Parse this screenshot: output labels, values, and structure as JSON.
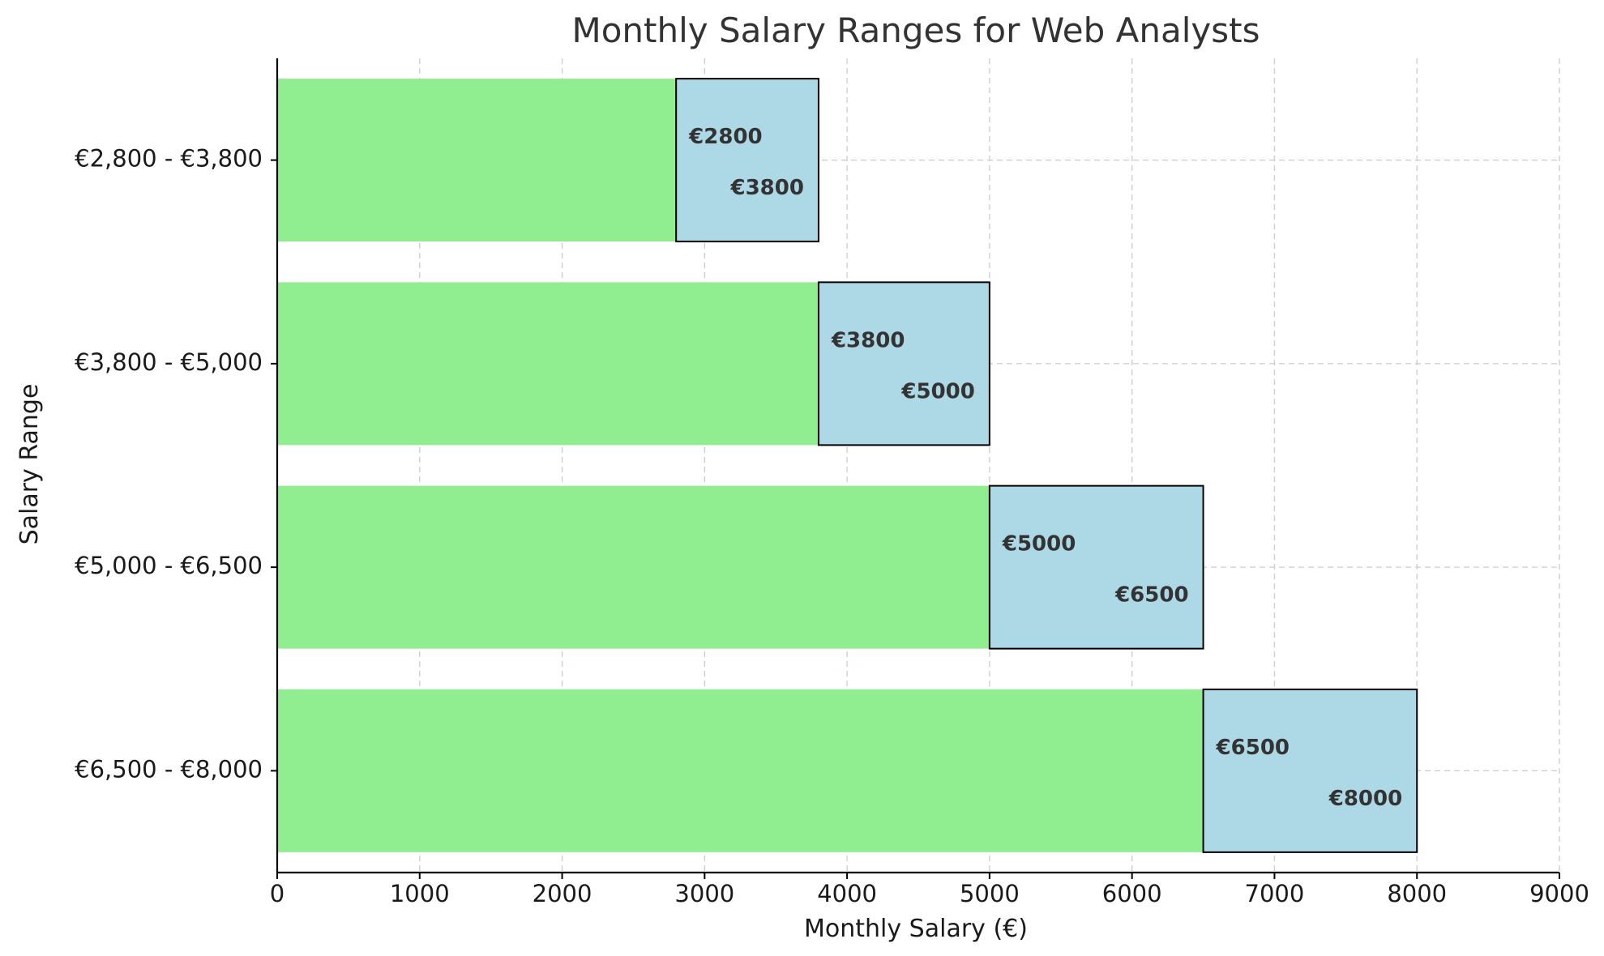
{
  "chart_data": {
    "type": "bar",
    "orientation": "horizontal",
    "stacked": true,
    "title": "Monthly Salary Ranges for Web Analysts",
    "xlabel": "Monthly Salary (€)",
    "ylabel": "Salary Range",
    "xlim": [
      0,
      9000
    ],
    "xticks": [
      0,
      1000,
      2000,
      3000,
      4000,
      5000,
      6000,
      7000,
      8000,
      9000
    ],
    "grid": true,
    "categories": [
      "€2,800 - €3,800",
      "€3,800 - €5,000",
      "€5,000 - €6,500",
      "€6,500 - €8,000"
    ],
    "series": [
      {
        "values": [
          2800,
          3800,
          5000,
          6500
        ],
        "color": "#90ee90"
      },
      {
        "values": [
          1000,
          1200,
          1500,
          1500
        ],
        "color": "#add8e6"
      }
    ],
    "annotations": [
      {
        "min_label": "€2800",
        "max_label": "€3800"
      },
      {
        "min_label": "€3800",
        "max_label": "€5000"
      },
      {
        "min_label": "€5000",
        "max_label": "€6500"
      },
      {
        "min_label": "€6500",
        "max_label": "€8000"
      }
    ]
  }
}
